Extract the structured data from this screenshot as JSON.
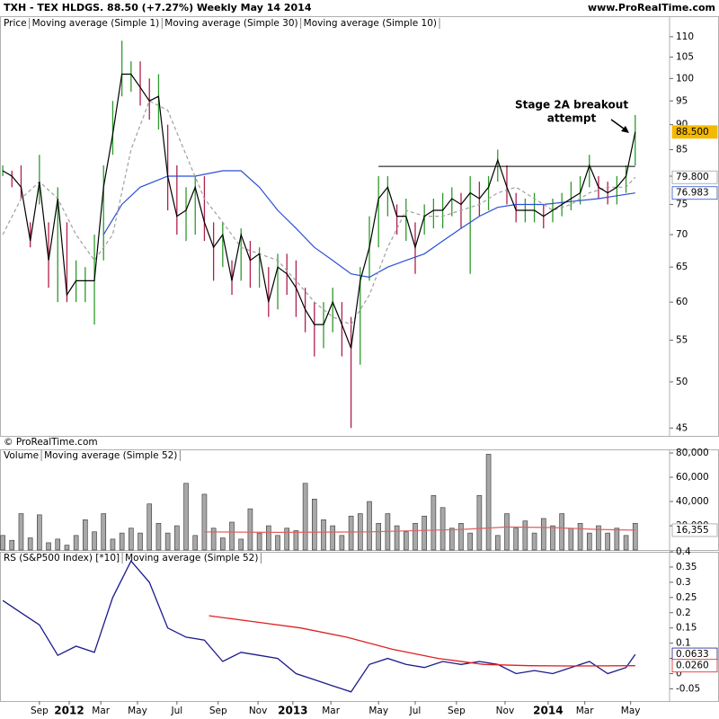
{
  "header": {
    "title": "TXH - TEX HLDGS.    88.50 (+7.27%)    Weekly  May 14 2014",
    "site": "www.ProRealTime.com",
    "copyright": "© ProRealTime.com"
  },
  "chart_data": [
    {
      "type": "hlc",
      "log_scale": true,
      "xlim": [
        -0.6,
        145.5
      ],
      "ylim": [
        44.2,
        111.8
      ],
      "yticks": [
        45,
        50,
        55,
        60,
        65,
        70,
        75,
        80,
        85,
        90,
        95,
        100,
        105,
        110
      ],
      "annotation": [
        "Stage 2A breakout",
        "attempt"
      ],
      "level": {
        "value": 81.8,
        "x": [
          82,
          138
        ],
        "color": "#000000"
      },
      "series": [
        {
          "name": "Price",
          "up_color": "#2e9a2e",
          "down_color": "#b0204a",
          "x": [
            0,
            2,
            4,
            6,
            8,
            10,
            12,
            14,
            16,
            18,
            20,
            22,
            24,
            26,
            28,
            30,
            32,
            34,
            36,
            38,
            40,
            42,
            44,
            46,
            48,
            50,
            52,
            54,
            56,
            58,
            60,
            62,
            64,
            66,
            68,
            70,
            72,
            74,
            76,
            78,
            80,
            82,
            84,
            86,
            88,
            90,
            92,
            94,
            96,
            98,
            100,
            102,
            104,
            106,
            108,
            110,
            112,
            114,
            116,
            118,
            120,
            122,
            124,
            126,
            128,
            130,
            132,
            134,
            136,
            138
          ],
          "high": [
            82,
            81,
            82,
            72,
            84,
            72,
            78,
            72,
            66,
            65,
            70,
            82,
            95,
            109,
            104,
            104,
            100,
            101,
            90,
            82,
            78,
            80,
            80,
            72,
            72,
            66,
            71,
            69,
            68,
            65,
            67,
            67,
            66,
            62,
            60,
            60,
            62,
            60,
            58,
            65,
            73,
            80,
            80,
            75,
            76,
            72,
            75,
            76,
            77,
            78,
            77,
            80,
            79,
            80,
            85,
            82,
            77,
            76,
            77,
            75,
            76,
            77,
            79,
            80,
            84,
            80,
            79,
            80,
            82,
            92
          ],
          "low": [
            80,
            78,
            76,
            68,
            75,
            62,
            60,
            60,
            60,
            60,
            57,
            66,
            84,
            96,
            97,
            94,
            91,
            89,
            74,
            70,
            69,
            70,
            69,
            63,
            65,
            61,
            63,
            62,
            62,
            58,
            59,
            61,
            58,
            56,
            53,
            54,
            56,
            53,
            45,
            52,
            63,
            68,
            73,
            70,
            69,
            64,
            70,
            71,
            71,
            73,
            71,
            64,
            73,
            74,
            79,
            75,
            72,
            72,
            72,
            71,
            72,
            73,
            74,
            75,
            78,
            76,
            75,
            75,
            77,
            82
          ],
          "close": [
            81,
            80,
            78,
            69,
            79,
            66,
            76,
            61,
            63,
            63,
            63,
            78,
            88,
            101,
            101,
            98,
            95,
            96,
            80,
            73,
            74,
            78,
            72,
            68,
            70,
            63,
            70,
            66,
            67,
            60,
            65,
            64,
            62,
            59,
            57,
            57,
            60,
            57,
            54,
            63,
            68,
            76,
            78,
            73,
            73,
            68,
            73,
            74,
            74,
            76,
            75,
            77,
            76,
            78,
            83,
            78,
            74,
            74,
            74,
            73,
            74,
            75,
            76,
            77,
            82,
            78,
            77,
            78,
            80,
            88.5
          ]
        },
        {
          "name": "Moving average (Simple 1)",
          "color": "#000000"
        },
        {
          "name": "Moving average (Simple 30)",
          "color": "#2a4fd6",
          "x": [
            22,
            26,
            30,
            36,
            42,
            48,
            52,
            56,
            60,
            64,
            68,
            72,
            76,
            80,
            84,
            88,
            92,
            96,
            100,
            104,
            108,
            112,
            118,
            124,
            130,
            134,
            138
          ],
          "values": [
            70,
            75,
            78,
            80,
            80,
            81,
            81,
            78,
            74,
            71,
            68,
            66,
            64,
            63.5,
            65,
            66,
            67,
            69,
            71,
            73,
            74.5,
            75,
            75,
            75.5,
            76,
            76.5,
            76.983
          ]
        },
        {
          "name": "Moving average (Simple 10)",
          "color": "#a0a0a0",
          "dashed": true,
          "x": [
            0,
            4,
            8,
            12,
            16,
            20,
            24,
            28,
            32,
            36,
            40,
            44,
            48,
            52,
            56,
            60,
            64,
            68,
            72,
            76,
            80,
            84,
            88,
            92,
            96,
            100,
            104,
            108,
            112,
            116,
            120,
            124,
            128,
            132,
            136,
            138
          ],
          "values": [
            70,
            76,
            79,
            76,
            70,
            66,
            70,
            85,
            95,
            93,
            84,
            76,
            72,
            68,
            67,
            66,
            63,
            60,
            58,
            57,
            61,
            68,
            74,
            73,
            73,
            74,
            75,
            77,
            78,
            76,
            74,
            75,
            77,
            78,
            78,
            79.8
          ]
        }
      ],
      "current_labels": [
        {
          "value": 88.5,
          "label": "88.500",
          "color": "#f5b800"
        },
        {
          "value": 79.8,
          "label": "79.800",
          "color": "#a0a0a0"
        },
        {
          "value": 76.983,
          "label": "76.983",
          "color": "#2a4fd6"
        }
      ]
    },
    {
      "type": "bar",
      "xlim": [
        -0.6,
        145.5
      ],
      "ylim": [
        0,
        83000
      ],
      "yticks": [
        {
          "value": 20000,
          "label": "20,000"
        },
        {
          "value": 40000,
          "label": "40,000"
        },
        {
          "value": 60000,
          "label": "60,000"
        },
        {
          "value": 80000,
          "label": "80,000"
        }
      ],
      "series": [
        {
          "name": "Volume",
          "color": "#a8a8a8",
          "x": [
            0,
            2,
            4,
            6,
            8,
            10,
            12,
            14,
            16,
            18,
            20,
            22,
            24,
            26,
            28,
            30,
            32,
            34,
            36,
            38,
            40,
            42,
            44,
            46,
            48,
            50,
            52,
            54,
            56,
            58,
            60,
            62,
            64,
            66,
            68,
            70,
            72,
            74,
            76,
            78,
            80,
            82,
            84,
            86,
            88,
            90,
            92,
            94,
            96,
            98,
            100,
            102,
            104,
            106,
            108,
            110,
            112,
            114,
            116,
            118,
            120,
            122,
            124,
            126,
            128,
            130,
            132,
            134,
            136,
            138
          ],
          "values": [
            12000,
            8000,
            30000,
            10000,
            29000,
            6000,
            9000,
            4000,
            12000,
            25000,
            15000,
            30000,
            9000,
            14000,
            18000,
            14000,
            38000,
            22000,
            14000,
            20000,
            55000,
            12000,
            46000,
            18000,
            10000,
            23000,
            9000,
            34000,
            14000,
            20000,
            12000,
            18000,
            16000,
            55000,
            42000,
            25000,
            20000,
            12000,
            28000,
            30000,
            40000,
            22000,
            30000,
            20000,
            15000,
            22000,
            28000,
            45000,
            35000,
            18000,
            22000,
            14000,
            45000,
            79000,
            12000,
            30000,
            18000,
            24000,
            14000,
            26000,
            20000,
            30000,
            18000,
            22000,
            14000,
            20000,
            14000,
            18000,
            12000,
            22000
          ]
        },
        {
          "name": "Moving average (Simple 52)",
          "color": "#e06060",
          "x": [
            44,
            60,
            80,
            100,
            110,
            120,
            130,
            138
          ],
          "values": [
            15000,
            14500,
            15000,
            17000,
            19000,
            18500,
            17000,
            16355
          ]
        }
      ],
      "current_labels": [
        {
          "value": 16355,
          "label": "16,355",
          "color": "#a0a0a0"
        }
      ]
    },
    {
      "type": "line",
      "xlim": [
        -0.6,
        145.5
      ],
      "ylim": [
        -0.09,
        0.4
      ],
      "yticks": [
        -0.05,
        0,
        0.05,
        0.1,
        0.15,
        0.2,
        0.25,
        0.3,
        0.35,
        0.4
      ],
      "xticks": [
        {
          "value": 8,
          "label": "Sep"
        },
        {
          "value": 14.5,
          "label": "2012"
        },
        {
          "value": 21.4,
          "label": "Mar"
        },
        {
          "value": 29.4,
          "label": "May"
        },
        {
          "value": 38,
          "label": "Jul"
        },
        {
          "value": 47,
          "label": "Sep"
        },
        {
          "value": 55.7,
          "label": "Nov"
        },
        {
          "value": 63.3,
          "label": "2013"
        },
        {
          "value": 71.6,
          "label": "Mar"
        },
        {
          "value": 82,
          "label": "May"
        },
        {
          "value": 90,
          "label": "Jul"
        },
        {
          "value": 99,
          "label": "Sep"
        },
        {
          "value": 109.6,
          "label": "Nov"
        },
        {
          "value": 119,
          "label": "2014"
        },
        {
          "value": 127,
          "label": "Mar"
        },
        {
          "value": 137,
          "label": "May"
        }
      ],
      "series": [
        {
          "name": "RS (S&P500 Index) [*10]",
          "color": "#1a1a8c",
          "x": [
            0,
            4,
            8,
            12,
            16,
            20,
            24,
            28,
            32,
            36,
            40,
            44,
            48,
            52,
            56,
            60,
            64,
            68,
            72,
            76,
            80,
            84,
            88,
            92,
            96,
            100,
            104,
            108,
            112,
            116,
            120,
            124,
            128,
            132,
            136,
            138
          ],
          "values": [
            0.24,
            0.2,
            0.16,
            0.06,
            0.09,
            0.07,
            0.25,
            0.37,
            0.3,
            0.15,
            0.12,
            0.11,
            0.04,
            0.07,
            0.06,
            0.05,
            0.0,
            -0.02,
            -0.04,
            -0.06,
            0.03,
            0.05,
            0.03,
            0.02,
            0.04,
            0.03,
            0.04,
            0.03,
            0.0,
            0.01,
            0.0,
            0.02,
            0.04,
            0.0,
            0.02,
            0.0633
          ]
        },
        {
          "name": "Moving average (Simple 52)",
          "color": "#e02020",
          "x": [
            45,
            55,
            65,
            75,
            85,
            95,
            105,
            115,
            125,
            138
          ],
          "values": [
            0.19,
            0.17,
            0.15,
            0.12,
            0.08,
            0.05,
            0.03,
            0.026,
            0.025,
            0.026
          ]
        }
      ],
      "current_labels": [
        {
          "value": 0.0633,
          "label": "0.0633",
          "color": "#1a1a8c"
        },
        {
          "value": 0.026,
          "label": "0.0260",
          "color": "#e02020"
        }
      ]
    }
  ]
}
